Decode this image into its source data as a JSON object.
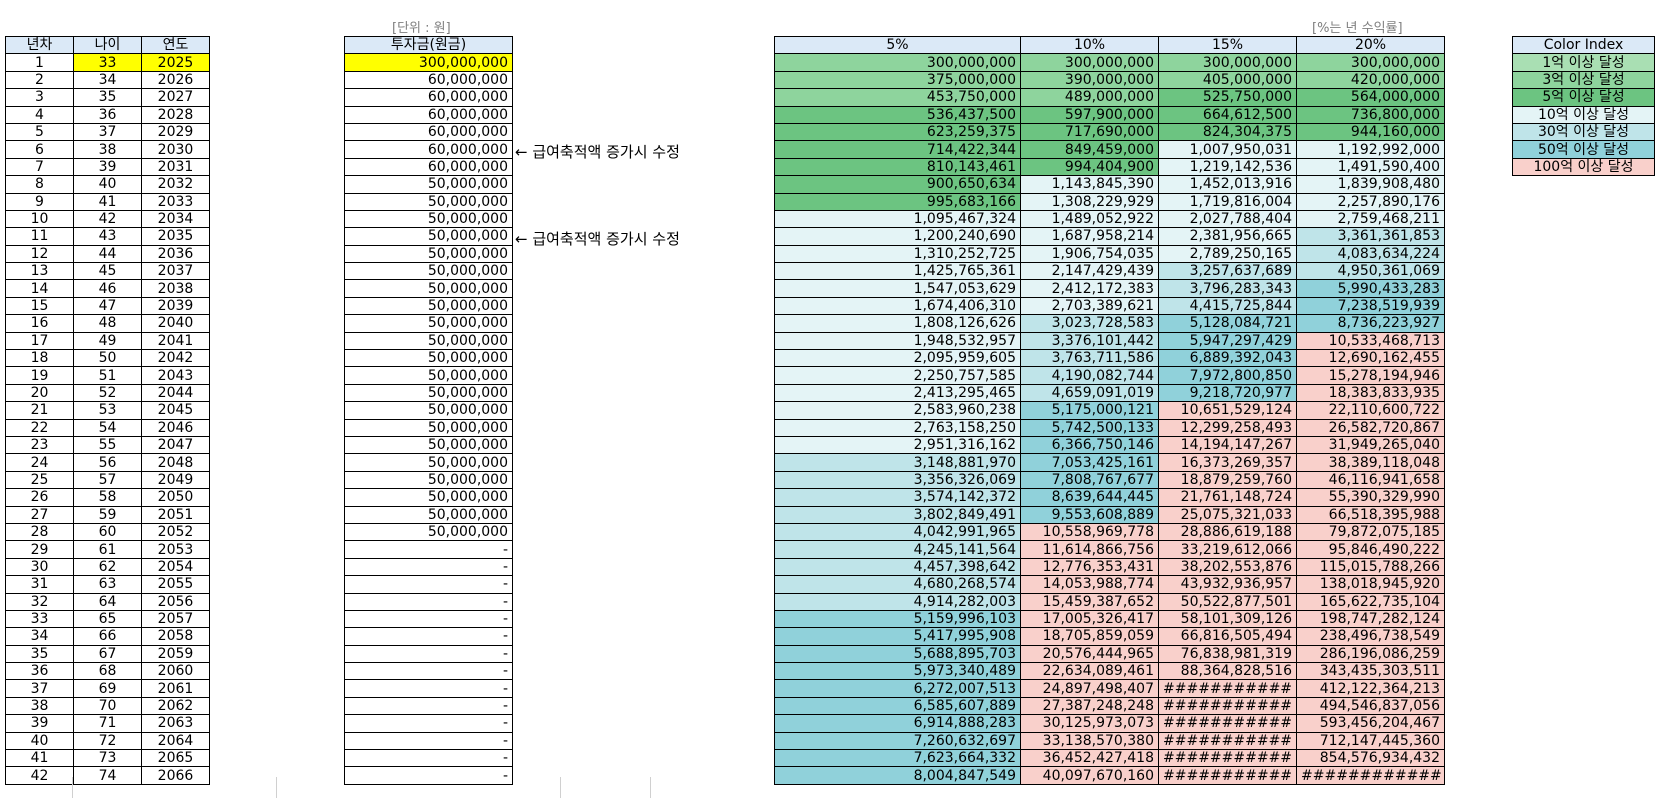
{
  "labels": {
    "unit_note": "[단위 : 원]",
    "rate_note": "[%는 년 수익률]",
    "annotation_1": "← 급여축적액 증가시 수정",
    "annotation_2": "← 급여축적액 증가시 수정"
  },
  "headers": {
    "year_no": "년차",
    "age": "나이",
    "year": "연도",
    "invest": "투자금(원금)",
    "rates": [
      "5%",
      "10%",
      "15%",
      "20%"
    ],
    "color_index": "Color Index"
  },
  "color_index": {
    "labels": [
      "1억 이상 달성",
      "3억 이상 달성",
      "5억 이상 달성",
      "10억 이상 달성",
      "30억 이상 달성",
      "50억 이상 달성",
      "100억 이상 달성"
    ],
    "colors": [
      "#a9dfb3",
      "#8ed49d",
      "#6cc481",
      "#e4f4f6",
      "#bfe4e9",
      "#90d1da",
      "#f9d0cb"
    ]
  },
  "highlight_color": "#ffff00",
  "header_color": "#dbe9f7",
  "rows": [
    {
      "n": "1",
      "age": "33",
      "year": "2025",
      "inv": "300,000,000",
      "v": [
        "300,000,000",
        "300,000,000",
        "300,000,000",
        "300,000,000"
      ]
    },
    {
      "n": "2",
      "age": "34",
      "year": "2026",
      "inv": "60,000,000",
      "v": [
        "375,000,000",
        "390,000,000",
        "405,000,000",
        "420,000,000"
      ]
    },
    {
      "n": "3",
      "age": "35",
      "year": "2027",
      "inv": "60,000,000",
      "v": [
        "453,750,000",
        "489,000,000",
        "525,750,000",
        "564,000,000"
      ]
    },
    {
      "n": "4",
      "age": "36",
      "year": "2028",
      "inv": "60,000,000",
      "v": [
        "536,437,500",
        "597,900,000",
        "664,612,500",
        "736,800,000"
      ]
    },
    {
      "n": "5",
      "age": "37",
      "year": "2029",
      "inv": "60,000,000",
      "v": [
        "623,259,375",
        "717,690,000",
        "824,304,375",
        "944,160,000"
      ]
    },
    {
      "n": "6",
      "age": "38",
      "year": "2030",
      "inv": "60,000,000",
      "v": [
        "714,422,344",
        "849,459,000",
        "1,007,950,031",
        "1,192,992,000"
      ]
    },
    {
      "n": "7",
      "age": "39",
      "year": "2031",
      "inv": "60,000,000",
      "v": [
        "810,143,461",
        "994,404,900",
        "1,219,142,536",
        "1,491,590,400"
      ]
    },
    {
      "n": "8",
      "age": "40",
      "year": "2032",
      "inv": "50,000,000",
      "v": [
        "900,650,634",
        "1,143,845,390",
        "1,452,013,916",
        "1,839,908,480"
      ]
    },
    {
      "n": "9",
      "age": "41",
      "year": "2033",
      "inv": "50,000,000",
      "v": [
        "995,683,166",
        "1,308,229,929",
        "1,719,816,004",
        "2,257,890,176"
      ]
    },
    {
      "n": "10",
      "age": "42",
      "year": "2034",
      "inv": "50,000,000",
      "v": [
        "1,095,467,324",
        "1,489,052,922",
        "2,027,788,404",
        "2,759,468,211"
      ]
    },
    {
      "n": "11",
      "age": "43",
      "year": "2035",
      "inv": "50,000,000",
      "v": [
        "1,200,240,690",
        "1,687,958,214",
        "2,381,956,665",
        "3,361,361,853"
      ]
    },
    {
      "n": "12",
      "age": "44",
      "year": "2036",
      "inv": "50,000,000",
      "v": [
        "1,310,252,725",
        "1,906,754,035",
        "2,789,250,165",
        "4,083,634,224"
      ]
    },
    {
      "n": "13",
      "age": "45",
      "year": "2037",
      "inv": "50,000,000",
      "v": [
        "1,425,765,361",
        "2,147,429,439",
        "3,257,637,689",
        "4,950,361,069"
      ]
    },
    {
      "n": "14",
      "age": "46",
      "year": "2038",
      "inv": "50,000,000",
      "v": [
        "1,547,053,629",
        "2,412,172,383",
        "3,796,283,343",
        "5,990,433,283"
      ]
    },
    {
      "n": "15",
      "age": "47",
      "year": "2039",
      "inv": "50,000,000",
      "v": [
        "1,674,406,310",
        "2,703,389,621",
        "4,415,725,844",
        "7,238,519,939"
      ]
    },
    {
      "n": "16",
      "age": "48",
      "year": "2040",
      "inv": "50,000,000",
      "v": [
        "1,808,126,626",
        "3,023,728,583",
        "5,128,084,721",
        "8,736,223,927"
      ]
    },
    {
      "n": "17",
      "age": "49",
      "year": "2041",
      "inv": "50,000,000",
      "v": [
        "1,948,532,957",
        "3,376,101,442",
        "5,947,297,429",
        "10,533,468,713"
      ]
    },
    {
      "n": "18",
      "age": "50",
      "year": "2042",
      "inv": "50,000,000",
      "v": [
        "2,095,959,605",
        "3,763,711,586",
        "6,889,392,043",
        "12,690,162,455"
      ]
    },
    {
      "n": "19",
      "age": "51",
      "year": "2043",
      "inv": "50,000,000",
      "v": [
        "2,250,757,585",
        "4,190,082,744",
        "7,972,800,850",
        "15,278,194,946"
      ]
    },
    {
      "n": "20",
      "age": "52",
      "year": "2044",
      "inv": "50,000,000",
      "v": [
        "2,413,295,465",
        "4,659,091,019",
        "9,218,720,977",
        "18,383,833,935"
      ]
    },
    {
      "n": "21",
      "age": "53",
      "year": "2045",
      "inv": "50,000,000",
      "v": [
        "2,583,960,238",
        "5,175,000,121",
        "10,651,529,124",
        "22,110,600,722"
      ]
    },
    {
      "n": "22",
      "age": "54",
      "year": "2046",
      "inv": "50,000,000",
      "v": [
        "2,763,158,250",
        "5,742,500,133",
        "12,299,258,493",
        "26,582,720,867"
      ]
    },
    {
      "n": "23",
      "age": "55",
      "year": "2047",
      "inv": "50,000,000",
      "v": [
        "2,951,316,162",
        "6,366,750,146",
        "14,194,147,267",
        "31,949,265,040"
      ]
    },
    {
      "n": "24",
      "age": "56",
      "year": "2048",
      "inv": "50,000,000",
      "v": [
        "3,148,881,970",
        "7,053,425,161",
        "16,373,269,357",
        "38,389,118,048"
      ]
    },
    {
      "n": "25",
      "age": "57",
      "year": "2049",
      "inv": "50,000,000",
      "v": [
        "3,356,326,069",
        "7,808,767,677",
        "18,879,259,760",
        "46,116,941,658"
      ]
    },
    {
      "n": "26",
      "age": "58",
      "year": "2050",
      "inv": "50,000,000",
      "v": [
        "3,574,142,372",
        "8,639,644,445",
        "21,761,148,724",
        "55,390,329,990"
      ]
    },
    {
      "n": "27",
      "age": "59",
      "year": "2051",
      "inv": "50,000,000",
      "v": [
        "3,802,849,491",
        "9,553,608,889",
        "25,075,321,033",
        "66,518,395,988"
      ]
    },
    {
      "n": "28",
      "age": "60",
      "year": "2052",
      "inv": "50,000,000",
      "v": [
        "4,042,991,965",
        "10,558,969,778",
        "28,886,619,188",
        "79,872,075,185"
      ]
    },
    {
      "n": "29",
      "age": "61",
      "year": "2053",
      "inv": "-",
      "v": [
        "4,245,141,564",
        "11,614,866,756",
        "33,219,612,066",
        "95,846,490,222"
      ]
    },
    {
      "n": "30",
      "age": "62",
      "year": "2054",
      "inv": "-",
      "v": [
        "4,457,398,642",
        "12,776,353,431",
        "38,202,553,876",
        "115,015,788,266"
      ]
    },
    {
      "n": "31",
      "age": "63",
      "year": "2055",
      "inv": "-",
      "v": [
        "4,680,268,574",
        "14,053,988,774",
        "43,932,936,957",
        "138,018,945,920"
      ]
    },
    {
      "n": "32",
      "age": "64",
      "year": "2056",
      "inv": "-",
      "v": [
        "4,914,282,003",
        "15,459,387,652",
        "50,522,877,501",
        "165,622,735,104"
      ]
    },
    {
      "n": "33",
      "age": "65",
      "year": "2057",
      "inv": "-",
      "v": [
        "5,159,996,103",
        "17,005,326,417",
        "58,101,309,126",
        "198,747,282,124"
      ]
    },
    {
      "n": "34",
      "age": "66",
      "year": "2058",
      "inv": "-",
      "v": [
        "5,417,995,908",
        "18,705,859,059",
        "66,816,505,494",
        "238,496,738,549"
      ]
    },
    {
      "n": "35",
      "age": "67",
      "year": "2059",
      "inv": "-",
      "v": [
        "5,688,895,703",
        "20,576,444,965",
        "76,838,981,319",
        "286,196,086,259"
      ]
    },
    {
      "n": "36",
      "age": "68",
      "year": "2060",
      "inv": "-",
      "v": [
        "5,973,340,489",
        "22,634,089,461",
        "88,364,828,516",
        "343,435,303,511"
      ]
    },
    {
      "n": "37",
      "age": "69",
      "year": "2061",
      "inv": "-",
      "v": [
        "6,272,007,513",
        "24,897,498,407",
        "###########",
        "412,122,364,213"
      ]
    },
    {
      "n": "38",
      "age": "70",
      "year": "2062",
      "inv": "-",
      "v": [
        "6,585,607,889",
        "27,387,248,248",
        "###########",
        "494,546,837,056"
      ]
    },
    {
      "n": "39",
      "age": "71",
      "year": "2063",
      "inv": "-",
      "v": [
        "6,914,888,283",
        "30,125,973,073",
        "###########",
        "593,456,204,467"
      ]
    },
    {
      "n": "40",
      "age": "72",
      "year": "2064",
      "inv": "-",
      "v": [
        "7,260,632,697",
        "33,138,570,380",
        "###########",
        "712,147,445,360"
      ]
    },
    {
      "n": "41",
      "age": "73",
      "year": "2065",
      "inv": "-",
      "v": [
        "7,623,664,332",
        "36,452,427,418",
        "###########",
        "854,576,934,432"
      ]
    },
    {
      "n": "42",
      "age": "74",
      "year": "2066",
      "inv": "-",
      "v": [
        "8,004,847,549",
        "40,097,670,160",
        "###########",
        "############"
      ]
    }
  ]
}
